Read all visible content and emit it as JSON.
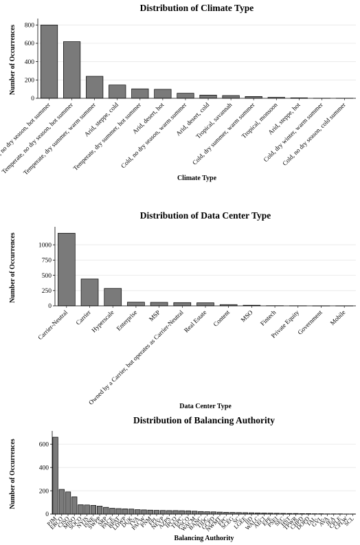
{
  "chart_data": [
    {
      "type": "bar",
      "title": "Distribution of Climate Type",
      "xlabel": "Climate Type",
      "ylabel": "Number of Occurrences",
      "ylim": [
        0,
        840
      ],
      "yticks": [
        0,
        200,
        400,
        600,
        800
      ],
      "grid": true,
      "categories": [
        "Cold, no dry season, hot summer",
        "Temperate, no dry season, hot summer",
        "Temperate, dry summer, warm summer",
        "Arid, steppe, cold",
        "Temperate, dry summer, hot summer",
        "Arid, desert, hot",
        "Cold, no dry season, warm summer",
        "Arid, desert, cold",
        "Tropical, savannah",
        "Cold, dry summer, warm summer",
        "Tropical, monsoon",
        "Arid, steppe, hot",
        "Cold, dry winter, warm summer",
        "Cold, no dry season, cold summer"
      ],
      "values": [
        800,
        618,
        240,
        145,
        103,
        98,
        55,
        35,
        30,
        20,
        10,
        5,
        1,
        1
      ]
    },
    {
      "type": "bar",
      "title": "Distribution of Data Center Type",
      "xlabel": "Data Center Type",
      "ylabel": "Number of Occurrences",
      "ylim": [
        0,
        1250
      ],
      "yticks": [
        0,
        250,
        500,
        750,
        1000
      ],
      "grid": true,
      "categories": [
        "Carrier-Neutral",
        "Carrier",
        "Hyperscale",
        "Enterprise",
        "MSP",
        "Owned by a Carrier, but operates as Carrier-Neutral",
        "Real Estate",
        "Content",
        "MSO",
        "Fintech",
        "Private Equity",
        "Government",
        "Mobile"
      ],
      "values": [
        1190,
        440,
        285,
        60,
        57,
        53,
        50,
        20,
        10,
        3,
        2,
        1,
        1
      ]
    },
    {
      "type": "bar",
      "title": "Distribution of Balancing Authority",
      "xlabel": "Balancing Authority",
      "ylabel": "Number of Occurrences",
      "ylim": [
        0,
        690
      ],
      "yticks": [
        0,
        200,
        400,
        600
      ],
      "grid": true,
      "categories": [
        "PJM",
        "ERCO",
        "CISO",
        "MISO",
        "SOCO",
        "NYIS",
        "ISNE",
        "SWPP",
        "SRP",
        "PACE",
        "BPAT",
        "LDWP",
        "DUK",
        "TVA",
        "PACW",
        "PNM",
        "FPL",
        "NEVP",
        "AZPS",
        "IPCO",
        "TEPC",
        "PSCO",
        "WACM",
        "BANC",
        "TIDC",
        "GCPD",
        "NWMT",
        "FPC",
        "SCEG",
        "SC",
        "LGEE",
        "IID",
        "WALC",
        "AECI",
        "EPE",
        "PSEI",
        "SEC",
        "HST",
        "TPWR",
        "CHPD",
        "DOPD",
        "TAL",
        "GVL",
        "AVA",
        "JEA",
        "CPLE",
        "CPLW",
        "SCL"
      ],
      "values": [
        660,
        212,
        190,
        148,
        80,
        78,
        75,
        68,
        58,
        50,
        47,
        45,
        43,
        38,
        36,
        34,
        32,
        31,
        30,
        30,
        29,
        28,
        25,
        22,
        20,
        19,
        17,
        15,
        14,
        13,
        12,
        11,
        10,
        9,
        8,
        7,
        6,
        5,
        5,
        4,
        4,
        3,
        3,
        2,
        2,
        2,
        1,
        1
      ]
    }
  ],
  "bal_tick_labels": [
    "PJM",
    "ERCO",
    "CISO",
    "MISO",
    "SOCO",
    "NYIS",
    "ISNE",
    "SWPP",
    "SRP",
    "PACE",
    "BPAT",
    "LDWP",
    "DUK",
    "TVA",
    "PACW",
    "PNM",
    "FPL",
    "NEVP",
    "AZPS",
    "IPCO",
    "TEPC",
    "PSCO",
    "WACM",
    "BANC",
    "TIDC",
    "GCPD",
    "NWMT",
    "FPC",
    "SCEG",
    "SC",
    "LGEE",
    "IID",
    "WALC",
    "AECI",
    "EPE",
    "PSEI",
    "SEC",
    "HST",
    "TPWR",
    "CHPD",
    "DOPD",
    "TAL",
    "GVL",
    "AVA",
    "JEA",
    "CPLE",
    "CPLW",
    "SCL"
  ],
  "colors": {
    "bar_fill": "#7a7a7a",
    "bar_stroke": "#000000",
    "grid": "#e6e6e6",
    "axis": "#000000"
  }
}
